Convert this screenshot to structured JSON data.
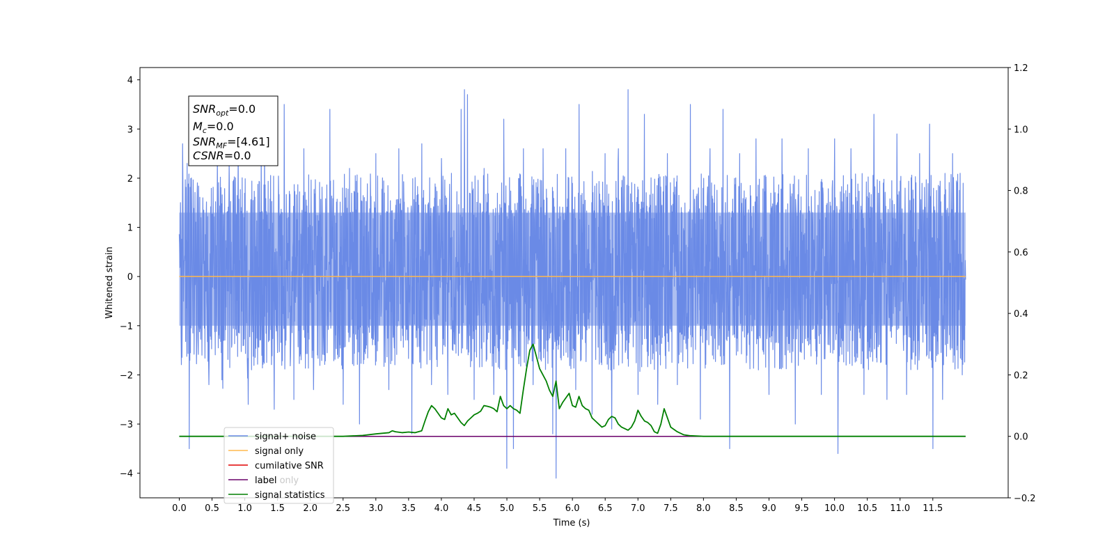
{
  "chart_data": {
    "type": "line",
    "xlabel": "Time (s)",
    "ylabel": "Whitened strain",
    "xlim": [
      -0.6,
      12.65
    ],
    "ylim": [
      -4.5,
      4.25
    ],
    "y2lim": [
      -0.2,
      1.2
    ],
    "x_ticks": [
      "0.0",
      "0.5",
      "1.0",
      "1.5",
      "2.0",
      "2.5",
      "3.0",
      "3.5",
      "4.0",
      "4.5",
      "5.0",
      "5.5",
      "6.0",
      "6.5",
      "7.0",
      "7.5",
      "8.0",
      "8.5",
      "9.0",
      "9.5",
      "10.0",
      "10.5",
      "11.0",
      "11.5"
    ],
    "y_ticks": [
      "4",
      "3",
      "2",
      "1",
      "0",
      "−1",
      "−2",
      "−3",
      "−4"
    ],
    "y2_ticks": [
      "1.2",
      "1.0",
      "0.8",
      "0.6",
      "0.4",
      "0.2",
      "0.0",
      "−0.2"
    ],
    "noise_band": {
      "x_start": 0.0,
      "x_end": 12.0,
      "typical_min": -1.9,
      "typical_max": 2.1
    },
    "noise_spikes": [
      [
        0.05,
        2.7
      ],
      [
        0.15,
        -3.5
      ],
      [
        0.12,
        2.3
      ],
      [
        0.45,
        -2.2
      ],
      [
        0.58,
        2.5
      ],
      [
        0.65,
        -2.1
      ],
      [
        0.9,
        2.6
      ],
      [
        1.05,
        -2.6
      ],
      [
        1.25,
        2.9
      ],
      [
        1.3,
        3.3
      ],
      [
        1.45,
        -2.7
      ],
      [
        1.6,
        3.5
      ],
      [
        1.75,
        -2.5
      ],
      [
        1.9,
        2.6
      ],
      [
        2.05,
        -2.3
      ],
      [
        2.3,
        3.4
      ],
      [
        2.5,
        -2.6
      ],
      [
        2.6,
        2.2
      ],
      [
        2.75,
        -3.0
      ],
      [
        3.0,
        2.5
      ],
      [
        3.2,
        -2.3
      ],
      [
        3.35,
        2.6
      ],
      [
        3.55,
        -3.2
      ],
      [
        3.7,
        2.7
      ],
      [
        3.85,
        -2.2
      ],
      [
        4.0,
        2.4
      ],
      [
        4.1,
        -2.4
      ],
      [
        4.3,
        3.4
      ],
      [
        4.35,
        3.8
      ],
      [
        4.4,
        3.7
      ],
      [
        4.5,
        -2.5
      ],
      [
        4.65,
        2.2
      ],
      [
        4.8,
        -2.4
      ],
      [
        4.95,
        3.2
      ],
      [
        5.0,
        -3.9
      ],
      [
        5.1,
        -3.5
      ],
      [
        5.25,
        2.6
      ],
      [
        5.4,
        -2.2
      ],
      [
        5.55,
        2.6
      ],
      [
        5.7,
        -3.2
      ],
      [
        5.75,
        -4.1
      ],
      [
        5.9,
        2.6
      ],
      [
        6.05,
        -2.3
      ],
      [
        6.1,
        3.5
      ],
      [
        6.3,
        -2.8
      ],
      [
        6.5,
        2.5
      ],
      [
        6.6,
        -3.1
      ],
      [
        6.7,
        2.6
      ],
      [
        6.85,
        3.8
      ],
      [
        7.0,
        -2.4
      ],
      [
        7.1,
        3.3
      ],
      [
        7.3,
        -2.6
      ],
      [
        7.45,
        2.5
      ],
      [
        7.6,
        -2.2
      ],
      [
        7.8,
        3.5
      ],
      [
        7.95,
        -2.9
      ],
      [
        8.1,
        2.6
      ],
      [
        8.3,
        3.4
      ],
      [
        8.4,
        -3.5
      ],
      [
        8.55,
        2.5
      ],
      [
        8.8,
        2.8
      ],
      [
        9.0,
        -2.4
      ],
      [
        9.2,
        2.8
      ],
      [
        9.4,
        -3.0
      ],
      [
        9.6,
        2.6
      ],
      [
        9.8,
        -2.4
      ],
      [
        10.0,
        2.8
      ],
      [
        10.05,
        -3.6
      ],
      [
        10.25,
        2.6
      ],
      [
        10.45,
        -2.4
      ],
      [
        10.6,
        3.3
      ],
      [
        10.8,
        -2.5
      ],
      [
        10.95,
        2.9
      ],
      [
        11.1,
        -2.4
      ],
      [
        11.3,
        2.5
      ],
      [
        11.45,
        3.1
      ],
      [
        11.5,
        -3.5
      ],
      [
        11.65,
        -2.5
      ],
      [
        11.8,
        2.5
      ],
      [
        11.95,
        -2.0
      ]
    ],
    "series": [
      {
        "name": "signal+ noise",
        "color": "#6a8ae6",
        "style": "dense noise band"
      },
      {
        "name": "signal only",
        "color": "#ffb84d",
        "x": [
          0.0,
          12.0
        ],
        "y": [
          0.0,
          0.0
        ]
      },
      {
        "name": "cumilative SNR",
        "color": "#e00000",
        "x": [],
        "y": []
      },
      {
        "name": "label",
        "color": "#6a006a",
        "axis": "right",
        "x": [
          0.0,
          12.0
        ],
        "y": [
          0.0,
          0.0
        ]
      },
      {
        "name": "label only",
        "color": "#cccccc",
        "x": [],
        "y": []
      },
      {
        "name": "signal statistics",
        "color": "#007f00",
        "axis": "right",
        "x": [
          0.0,
          2.5,
          2.8,
          3.0,
          3.1,
          3.2,
          3.25,
          3.3,
          3.4,
          3.5,
          3.6,
          3.7,
          3.75,
          3.8,
          3.85,
          3.9,
          3.95,
          4.0,
          4.05,
          4.1,
          4.15,
          4.2,
          4.25,
          4.3,
          4.35,
          4.4,
          4.45,
          4.5,
          4.55,
          4.6,
          4.65,
          4.7,
          4.75,
          4.8,
          4.85,
          4.9,
          4.95,
          5.0,
          5.05,
          5.1,
          5.15,
          5.2,
          5.25,
          5.3,
          5.35,
          5.4,
          5.45,
          5.5,
          5.55,
          5.6,
          5.65,
          5.7,
          5.75,
          5.8,
          5.85,
          5.9,
          5.95,
          6.0,
          6.05,
          6.1,
          6.15,
          6.2,
          6.25,
          6.3,
          6.35,
          6.4,
          6.45,
          6.5,
          6.55,
          6.6,
          6.65,
          6.7,
          6.75,
          6.8,
          6.85,
          6.9,
          6.95,
          7.0,
          7.05,
          7.1,
          7.15,
          7.2,
          7.25,
          7.3,
          7.35,
          7.4,
          7.45,
          7.5,
          7.6,
          7.7,
          7.8,
          8.0,
          8.5,
          9.0,
          12.0
        ],
        "y": [
          0.0,
          0.0,
          0.003,
          0.008,
          0.01,
          0.012,
          0.018,
          0.015,
          0.012,
          0.014,
          0.012,
          0.018,
          0.05,
          0.08,
          0.1,
          0.09,
          0.075,
          0.06,
          0.055,
          0.09,
          0.07,
          0.075,
          0.06,
          0.045,
          0.035,
          0.05,
          0.06,
          0.07,
          0.075,
          0.082,
          0.1,
          0.098,
          0.095,
          0.09,
          0.08,
          0.13,
          0.1,
          0.09,
          0.1,
          0.09,
          0.085,
          0.075,
          0.15,
          0.22,
          0.28,
          0.3,
          0.26,
          0.22,
          0.2,
          0.18,
          0.15,
          0.13,
          0.18,
          0.09,
          0.11,
          0.125,
          0.14,
          0.1,
          0.095,
          0.13,
          0.1,
          0.09,
          0.085,
          0.06,
          0.05,
          0.04,
          0.03,
          0.035,
          0.055,
          0.065,
          0.06,
          0.04,
          0.03,
          0.025,
          0.02,
          0.03,
          0.05,
          0.085,
          0.065,
          0.05,
          0.045,
          0.035,
          0.015,
          0.01,
          0.04,
          0.09,
          0.06,
          0.03,
          0.015,
          0.005,
          0.002,
          0.0,
          0.0,
          0.0,
          0.0
        ]
      }
    ],
    "legend_position": "lower-left",
    "grid": false,
    "stats_box": {
      "snr_opt": "=0.0",
      "mc": "=0.0",
      "snr_mf": "=[4.61]",
      "csnr": "=0.0"
    }
  }
}
